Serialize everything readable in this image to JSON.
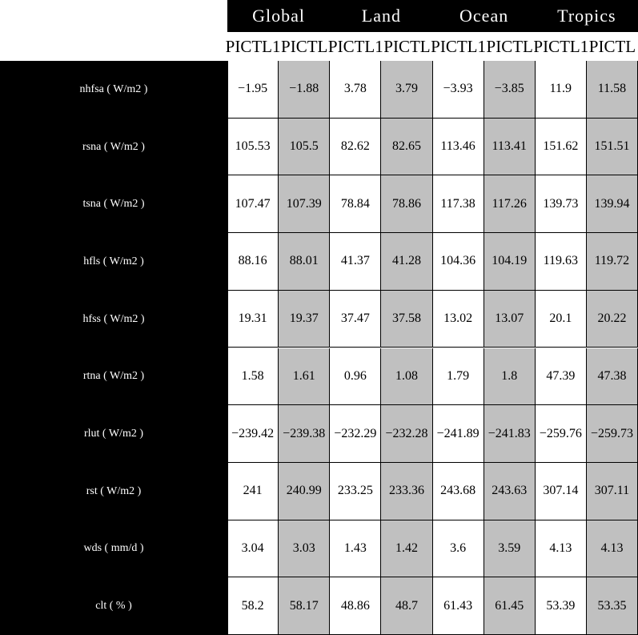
{
  "table": {
    "groups": [
      "Global",
      "Land",
      "Ocean",
      "Tropics"
    ],
    "subheaders": [
      "PICTL1",
      "PICTL",
      "PICTL1",
      "PICTL",
      "PICTL1",
      "PICTL",
      "PICTL1",
      "PICTL"
    ],
    "row_labels": [
      "nhfsa ( W/m2 )",
      "rsna ( W/m2 )",
      "tsna ( W/m2 )",
      "hfls ( W/m2 )",
      "hfss ( W/m2 )",
      "rtna ( W/m2 )",
      "rlut ( W/m2 )",
      "rst ( W/m2 )",
      "wds ( mm/d )",
      "clt ( % )"
    ],
    "rows": [
      [
        "−1.95",
        "−1.88",
        "3.78",
        "3.79",
        "−3.93",
        "−3.85",
        "11.9",
        "11.58"
      ],
      [
        "105.53",
        "105.5",
        "82.62",
        "82.65",
        "113.46",
        "113.41",
        "151.62",
        "151.51"
      ],
      [
        "107.47",
        "107.39",
        "78.84",
        "78.86",
        "117.38",
        "117.26",
        "139.73",
        "139.94"
      ],
      [
        "88.16",
        "88.01",
        "41.37",
        "41.28",
        "104.36",
        "104.19",
        "119.63",
        "119.72"
      ],
      [
        "19.31",
        "19.37",
        "37.47",
        "37.58",
        "13.02",
        "13.07",
        "20.1",
        "20.22"
      ],
      [
        "1.58",
        "1.61",
        "0.96",
        "1.08",
        "1.79",
        "1.8",
        "47.39",
        "47.38"
      ],
      [
        "−239.42",
        "−239.38",
        "−232.29",
        "−232.28",
        "−241.89",
        "−241.83",
        "−259.76",
        "−259.73"
      ],
      [
        "241",
        "240.99",
        "233.25",
        "233.36",
        "243.68",
        "243.63",
        "307.14",
        "307.11"
      ],
      [
        "3.04",
        "3.03",
        "1.43",
        "1.42",
        "3.6",
        "3.59",
        "4.13",
        "4.13"
      ],
      [
        "58.2",
        "58.17",
        "48.86",
        "48.7",
        "61.43",
        "61.45",
        "53.39",
        "53.35"
      ]
    ]
  }
}
